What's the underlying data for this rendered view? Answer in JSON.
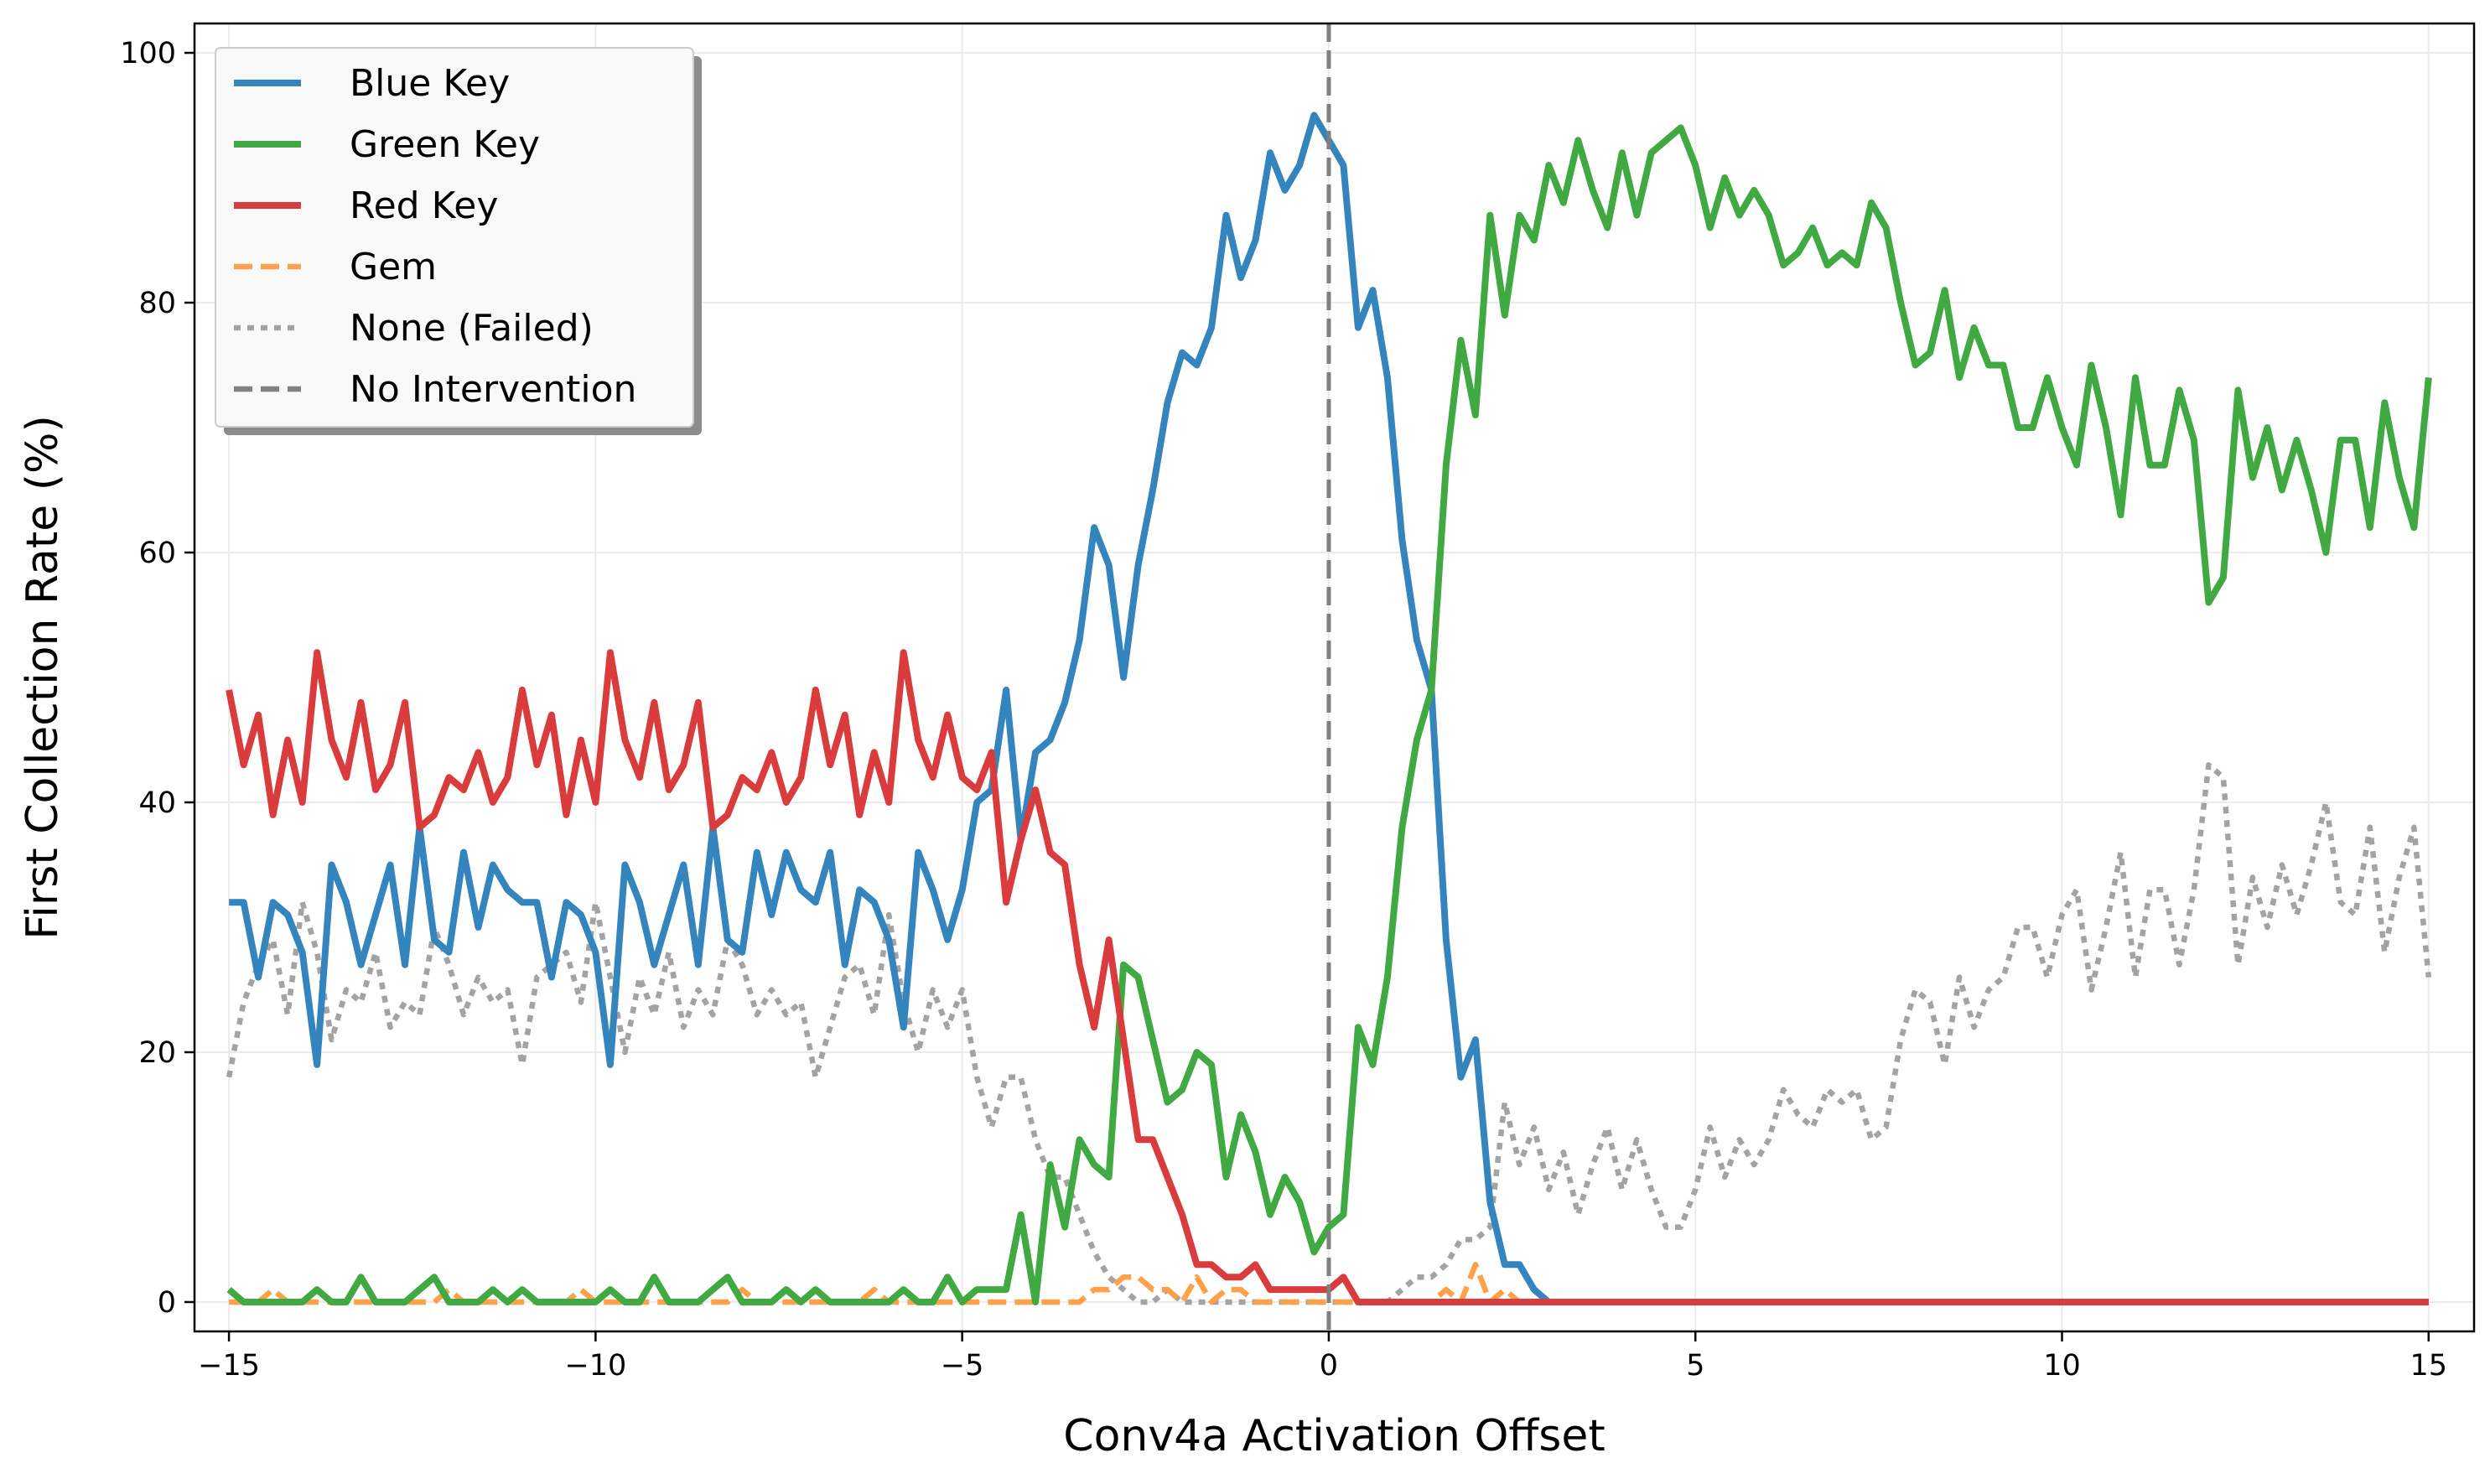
{
  "chart_data": {
    "type": "line",
    "title": "",
    "xlabel": "Conv4a Activation Offset",
    "ylabel": "First Collection Rate (%)",
    "xlim": [
      -15.47,
      15.62
    ],
    "ylim": [
      -2.35,
      102.35
    ],
    "grid": true,
    "legend_position": "top-left",
    "x_start": -15,
    "x_step": 0.2,
    "xticks": [
      -15,
      -10,
      -5,
      0,
      5,
      10,
      15
    ],
    "xtick_labels": [
      "−15",
      "−10",
      "−5",
      "0",
      "5",
      "10",
      "15"
    ],
    "yticks": [
      0,
      20,
      40,
      60,
      80,
      100
    ],
    "ytick_labels": [
      "0",
      "20",
      "40",
      "60",
      "80",
      "100"
    ],
    "series": [
      {
        "name": "Blue Key",
        "color": "#3484bd",
        "style": "solid",
        "values": [
          32,
          32,
          26,
          32,
          31,
          28,
          19,
          35,
          32,
          27,
          31,
          35,
          27,
          38,
          29,
          28,
          36,
          30,
          35,
          33,
          32,
          32,
          26,
          32,
          31,
          28,
          19,
          35,
          32,
          27,
          31,
          35,
          27,
          38,
          29,
          28,
          36,
          31,
          36,
          33,
          32,
          36,
          27,
          33,
          32,
          29,
          22,
          36,
          33,
          29,
          33,
          40,
          41,
          49,
          37,
          44,
          45,
          48,
          53,
          62,
          59,
          50,
          59,
          65,
          72,
          76,
          75,
          78,
          87,
          82,
          85,
          92,
          89,
          91,
          95,
          93,
          91,
          78,
          81,
          74,
          61,
          53,
          49,
          29,
          18,
          21,
          8,
          3,
          3,
          1,
          0,
          0,
          0,
          0,
          0,
          0,
          0,
          0,
          0,
          0,
          0,
          0,
          0,
          0,
          0,
          0,
          0,
          0,
          0,
          0,
          0,
          0,
          0,
          0,
          0,
          0,
          0,
          0,
          0,
          0,
          0,
          0,
          0,
          0,
          0,
          0,
          0,
          0,
          0,
          0,
          0,
          0,
          0,
          0,
          0,
          0,
          0,
          0,
          0,
          0,
          0,
          0,
          0,
          0,
          0,
          0,
          0,
          0,
          0,
          0,
          0
        ]
      },
      {
        "name": "Green Key",
        "color": "#41a941",
        "style": "solid",
        "values": [
          1,
          0,
          0,
          0,
          0,
          0,
          1,
          0,
          0,
          2,
          0,
          0,
          0,
          1,
          2,
          0,
          0,
          0,
          1,
          0,
          1,
          0,
          0,
          0,
          0,
          0,
          1,
          0,
          0,
          2,
          0,
          0,
          0,
          1,
          2,
          0,
          0,
          0,
          1,
          0,
          1,
          0,
          0,
          0,
          0,
          0,
          1,
          0,
          0,
          2,
          0,
          1,
          1,
          1,
          7,
          0,
          11,
          6,
          13,
          11,
          10,
          27,
          26,
          21,
          16,
          17,
          20,
          19,
          10,
          15,
          12,
          7,
          10,
          8,
          4,
          6,
          7,
          22,
          19,
          26,
          38,
          45,
          49,
          67,
          77,
          71,
          87,
          79,
          87,
          85,
          91,
          88,
          93,
          89,
          86,
          92,
          87,
          92,
          93,
          94,
          91,
          86,
          90,
          87,
          89,
          87,
          83,
          84,
          86,
          83,
          84,
          83,
          88,
          86,
          80,
          75,
          76,
          81,
          74,
          78,
          75,
          75,
          70,
          70,
          74,
          70,
          67,
          75,
          70,
          63,
          74,
          67,
          67,
          73,
          69,
          56,
          58,
          73,
          66,
          70,
          65,
          69,
          65,
          60,
          69,
          69,
          62,
          72,
          66,
          62,
          74
        ]
      },
      {
        "name": "Red Key",
        "color": "#da3c3d",
        "style": "solid",
        "values": [
          49,
          43,
          47,
          39,
          45,
          40,
          52,
          45,
          42,
          48,
          41,
          43,
          48,
          38,
          39,
          42,
          41,
          44,
          40,
          42,
          49,
          43,
          47,
          39,
          45,
          40,
          52,
          45,
          42,
          48,
          41,
          43,
          48,
          38,
          39,
          42,
          41,
          44,
          40,
          42,
          49,
          43,
          47,
          39,
          44,
          40,
          52,
          45,
          42,
          47,
          42,
          41,
          44,
          32,
          37,
          41,
          36,
          35,
          27,
          22,
          29,
          21,
          13,
          13,
          10,
          7,
          3,
          3,
          2,
          2,
          3,
          1,
          1,
          1,
          1,
          1,
          2,
          0,
          0,
          0,
          0,
          0,
          0,
          0,
          0,
          0,
          0,
          0,
          0,
          0,
          0,
          0,
          0,
          0,
          0,
          0,
          0,
          0,
          0,
          0,
          0,
          0,
          0,
          0,
          0,
          0,
          0,
          0,
          0,
          0,
          0,
          0,
          0,
          0,
          0,
          0,
          0,
          0,
          0,
          0,
          0,
          0,
          0,
          0,
          0,
          0,
          0,
          0,
          0,
          0,
          0,
          0,
          0,
          0,
          0,
          0,
          0,
          0,
          0,
          0,
          0,
          0,
          0,
          0,
          0,
          0,
          0,
          0,
          0,
          0,
          0
        ]
      },
      {
        "name": "Gem",
        "color": "#ffa04a",
        "style": "dashed",
        "values": [
          0,
          0,
          0,
          1,
          0,
          0,
          0,
          0,
          0,
          0,
          0,
          0,
          0,
          0,
          0,
          1,
          0,
          0,
          0,
          0,
          0,
          0,
          0,
          0,
          1,
          0,
          0,
          0,
          0,
          0,
          0,
          0,
          0,
          0,
          0,
          1,
          0,
          0,
          0,
          0,
          0,
          0,
          0,
          0,
          1,
          0,
          0,
          0,
          0,
          0,
          0,
          0,
          0,
          0,
          0,
          0,
          0,
          0,
          0,
          1,
          1,
          2,
          2,
          1,
          1,
          0,
          2,
          0,
          1,
          1,
          0,
          0,
          0,
          0,
          0,
          0,
          0,
          0,
          0,
          0,
          0,
          0,
          0,
          1,
          0,
          3,
          0,
          1,
          0,
          0,
          0,
          0,
          0,
          0,
          0,
          0,
          0,
          0,
          0,
          0,
          0,
          0,
          0,
          0,
          0,
          0,
          0,
          0,
          0,
          0,
          0,
          0,
          0,
          0,
          0,
          0,
          0,
          0,
          0,
          0,
          0,
          0,
          0,
          0,
          0,
          0,
          0,
          0,
          0,
          0,
          0,
          0,
          0,
          0,
          0,
          0,
          0,
          0,
          0,
          0,
          0,
          0,
          0,
          0,
          0,
          0,
          0,
          0,
          0,
          0,
          0
        ]
      },
      {
        "name": "None (Failed)",
        "color": "#a3a3a3",
        "style": "dotted",
        "values": [
          18,
          24,
          27,
          29,
          23,
          32,
          28,
          21,
          25,
          24,
          28,
          22,
          24,
          23,
          30,
          27,
          23,
          26,
          24,
          25,
          19,
          26,
          27,
          28,
          24,
          32,
          26,
          20,
          26,
          23,
          28,
          22,
          25,
          23,
          29,
          27,
          23,
          25,
          23,
          24,
          18,
          22,
          26,
          27,
          23,
          31,
          24,
          20,
          25,
          22,
          25,
          18,
          14,
          18,
          18,
          13,
          10,
          10,
          7,
          4,
          2,
          1,
          0,
          0,
          1,
          0,
          0,
          0,
          0,
          0,
          0,
          0,
          0,
          0,
          0,
          0,
          0,
          0,
          0,
          0,
          1,
          2,
          2,
          3,
          5,
          5,
          6,
          16,
          11,
          14,
          9,
          12,
          7,
          11,
          14,
          9,
          13,
          9,
          6,
          6,
          9,
          14,
          10,
          13,
          11,
          13,
          17,
          15,
          14,
          17,
          16,
          17,
          13,
          14,
          21,
          25,
          24,
          19,
          26,
          22,
          25,
          26,
          30,
          30,
          26,
          31,
          33,
          25,
          30,
          36,
          26,
          33,
          33,
          27,
          33,
          43,
          42,
          27,
          34,
          30,
          35,
          31,
          35,
          40,
          32,
          31,
          38,
          28,
          34,
          38,
          26
        ]
      }
    ],
    "reference_line": {
      "name": "No Intervention",
      "x": 0,
      "color": "#7f7f7f",
      "style": "dashed"
    }
  }
}
